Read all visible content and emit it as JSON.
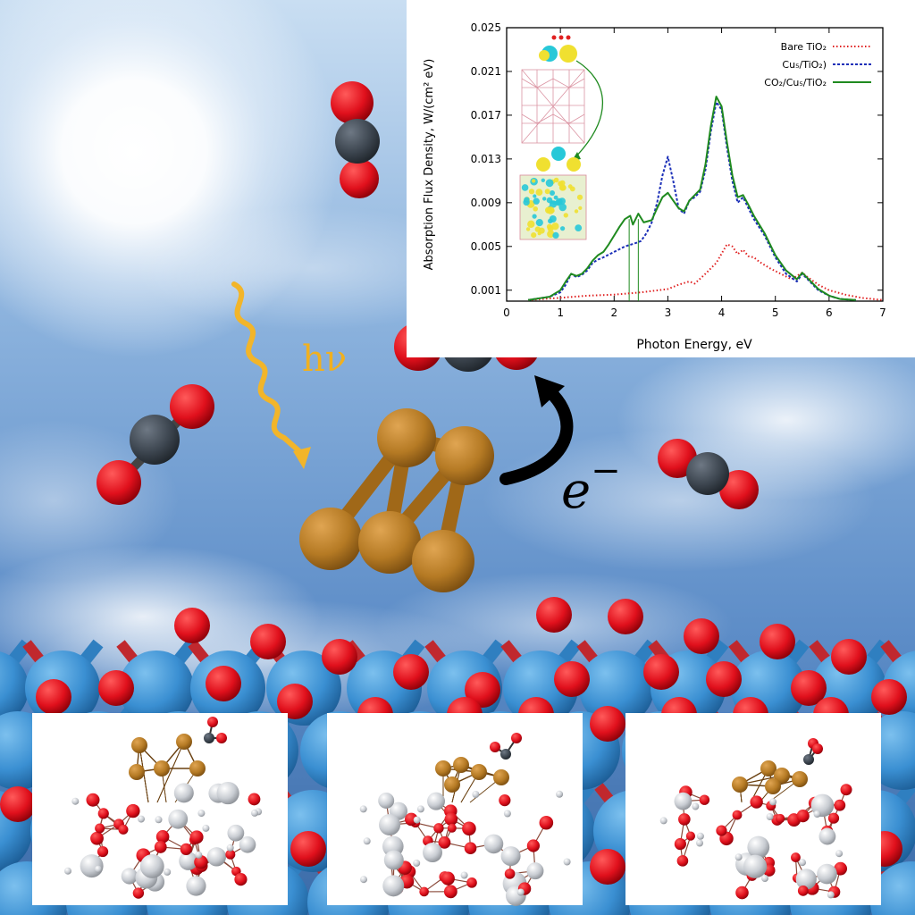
{
  "labels": {
    "photon": "hν",
    "electron": "e",
    "electron_sign": "−"
  },
  "colors": {
    "sky_top": "#bcd6ee",
    "sky_mid": "#6c9ad0",
    "sky_bottom": "#3d6fae",
    "copper": "#b57a24",
    "oxygen": "#e0101c",
    "carbon": "#3d4650",
    "titanium_blue": "#3a8fd2",
    "titanium_grey": "#c8ccd2",
    "photon_wave": "#f2b52a",
    "bare_tio2": "#e02020",
    "cu5_tio2": "#1b2fb8",
    "co2_cu5_tio2": "#1f8a1f"
  },
  "chart_data": {
    "type": "line",
    "xlabel": "Photon Energy, eV",
    "ylabel": "Absorption Flux Density, W/(cm² eV)",
    "xlim": [
      0,
      7
    ],
    "ylim": [
      0,
      0.025
    ],
    "x_ticks": [
      0,
      1,
      2,
      3,
      4,
      5,
      6,
      7
    ],
    "y_ticks": [
      "0.025",
      "0.021",
      "0.017",
      "0.013",
      "0.009",
      "0.005",
      "0.001"
    ],
    "y_tick_values": [
      0.025,
      0.021,
      0.017,
      0.013,
      0.009,
      0.005,
      0.001
    ],
    "legend_position": "top-right",
    "series": [
      {
        "name": "Bare TiO₂",
        "color": "#e02020",
        "style": "dotted",
        "points": [
          [
            0.4,
            0.0001
          ],
          [
            1.0,
            0.0003
          ],
          [
            1.5,
            0.0005
          ],
          [
            2.0,
            0.0006
          ],
          [
            2.5,
            0.0008
          ],
          [
            3.0,
            0.0011
          ],
          [
            3.2,
            0.0015
          ],
          [
            3.4,
            0.0018
          ],
          [
            3.5,
            0.0016
          ],
          [
            3.7,
            0.0025
          ],
          [
            3.9,
            0.0035
          ],
          [
            4.1,
            0.0052
          ],
          [
            4.2,
            0.005
          ],
          [
            4.3,
            0.0043
          ],
          [
            4.4,
            0.0047
          ],
          [
            4.5,
            0.0041
          ],
          [
            4.6,
            0.004
          ],
          [
            4.7,
            0.0036
          ],
          [
            4.9,
            0.003
          ],
          [
            5.1,
            0.0025
          ],
          [
            5.3,
            0.002
          ],
          [
            5.5,
            0.0026
          ],
          [
            5.6,
            0.0022
          ],
          [
            5.8,
            0.0015
          ],
          [
            6.0,
            0.001
          ],
          [
            6.3,
            0.0006
          ],
          [
            6.6,
            0.0003
          ],
          [
            7.0,
            0.0001
          ]
        ]
      },
      {
        "name": "Cu₅/TiO₂)",
        "color": "#1b2fb8",
        "style": "dashed",
        "points": [
          [
            0.4,
            0.0001
          ],
          [
            0.8,
            0.0004
          ],
          [
            1.0,
            0.0008
          ],
          [
            1.1,
            0.0015
          ],
          [
            1.2,
            0.0025
          ],
          [
            1.3,
            0.0022
          ],
          [
            1.4,
            0.0024
          ],
          [
            1.5,
            0.0028
          ],
          [
            1.6,
            0.0035
          ],
          [
            1.7,
            0.0038
          ],
          [
            1.8,
            0.004
          ],
          [
            2.0,
            0.0045
          ],
          [
            2.2,
            0.005
          ],
          [
            2.4,
            0.0053
          ],
          [
            2.5,
            0.0055
          ],
          [
            2.6,
            0.0062
          ],
          [
            2.7,
            0.0072
          ],
          [
            2.8,
            0.009
          ],
          [
            2.9,
            0.0115
          ],
          [
            3.0,
            0.0132
          ],
          [
            3.1,
            0.011
          ],
          [
            3.2,
            0.0085
          ],
          [
            3.3,
            0.008
          ],
          [
            3.4,
            0.0092
          ],
          [
            3.5,
            0.0095
          ],
          [
            3.6,
            0.01
          ],
          [
            3.7,
            0.012
          ],
          [
            3.8,
            0.0155
          ],
          [
            3.9,
            0.0182
          ],
          [
            4.0,
            0.0175
          ],
          [
            4.1,
            0.014
          ],
          [
            4.2,
            0.011
          ],
          [
            4.3,
            0.009
          ],
          [
            4.4,
            0.0095
          ],
          [
            4.5,
            0.0085
          ],
          [
            4.6,
            0.0075
          ],
          [
            4.8,
            0.006
          ],
          [
            5.0,
            0.004
          ],
          [
            5.2,
            0.0025
          ],
          [
            5.4,
            0.0018
          ],
          [
            5.5,
            0.0025
          ],
          [
            5.6,
            0.002
          ],
          [
            5.8,
            0.001
          ],
          [
            6.0,
            0.0005
          ],
          [
            6.2,
            0.0002
          ],
          [
            6.5,
            0.0001
          ]
        ]
      },
      {
        "name": "CO₂/Cu₅/TiO₂",
        "color": "#1f8a1f",
        "style": "solid",
        "points": [
          [
            0.4,
            0.0001
          ],
          [
            0.8,
            0.0004
          ],
          [
            1.0,
            0.001
          ],
          [
            1.1,
            0.0018
          ],
          [
            1.2,
            0.0025
          ],
          [
            1.3,
            0.0023
          ],
          [
            1.4,
            0.0025
          ],
          [
            1.5,
            0.003
          ],
          [
            1.6,
            0.0037
          ],
          [
            1.7,
            0.0042
          ],
          [
            1.8,
            0.0045
          ],
          [
            1.9,
            0.0052
          ],
          [
            2.0,
            0.006
          ],
          [
            2.1,
            0.0068
          ],
          [
            2.2,
            0.0075
          ],
          [
            2.3,
            0.0078
          ],
          [
            2.35,
            0.007
          ],
          [
            2.45,
            0.008
          ],
          [
            2.55,
            0.0072
          ],
          [
            2.7,
            0.0074
          ],
          [
            2.8,
            0.0085
          ],
          [
            2.9,
            0.0095
          ],
          [
            3.0,
            0.0099
          ],
          [
            3.1,
            0.0092
          ],
          [
            3.2,
            0.0085
          ],
          [
            3.3,
            0.0082
          ],
          [
            3.4,
            0.0092
          ],
          [
            3.5,
            0.0097
          ],
          [
            3.6,
            0.0102
          ],
          [
            3.7,
            0.0125
          ],
          [
            3.8,
            0.016
          ],
          [
            3.9,
            0.0187
          ],
          [
            4.0,
            0.0178
          ],
          [
            4.1,
            0.0145
          ],
          [
            4.2,
            0.0115
          ],
          [
            4.3,
            0.0095
          ],
          [
            4.4,
            0.0097
          ],
          [
            4.5,
            0.0088
          ],
          [
            4.6,
            0.0078
          ],
          [
            4.8,
            0.0062
          ],
          [
            5.0,
            0.0042
          ],
          [
            5.2,
            0.0028
          ],
          [
            5.4,
            0.002
          ],
          [
            5.5,
            0.0026
          ],
          [
            5.6,
            0.0021
          ],
          [
            5.8,
            0.0011
          ],
          [
            6.0,
            0.0005
          ],
          [
            6.2,
            0.0002
          ],
          [
            6.5,
            0.0001
          ]
        ]
      }
    ],
    "vertical_markers": [
      2.28,
      2.45
    ]
  }
}
